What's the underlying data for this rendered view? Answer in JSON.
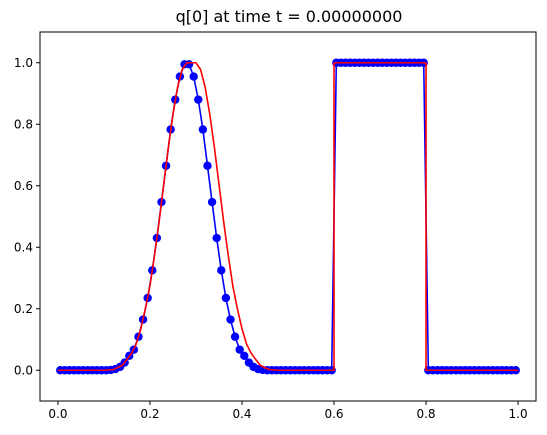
{
  "chart_data": {
    "type": "line",
    "title": "q[0] at time t =     0.00000000",
    "xlabel": "",
    "ylabel": "",
    "xlim": [
      -0.039,
      1.039
    ],
    "ylim": [
      -0.1,
      1.1
    ],
    "grid": false,
    "x_ticks": [
      0.0,
      0.2,
      0.4,
      0.6,
      0.8,
      1.0
    ],
    "x_tick_labels": [
      "0.0",
      "0.2",
      "0.4",
      "0.6",
      "0.8",
      "1.0"
    ],
    "y_ticks": [
      0.0,
      0.2,
      0.4,
      0.6,
      0.8,
      1.0
    ],
    "y_tick_labels": [
      "0.0",
      "0.2",
      "0.4",
      "0.6",
      "0.8",
      "1.0"
    ],
    "x": [
      0.005,
      0.015,
      0.025,
      0.035,
      0.045,
      0.055,
      0.065,
      0.075,
      0.085,
      0.095,
      0.105,
      0.115,
      0.125,
      0.135,
      0.145,
      0.155,
      0.165,
      0.175,
      0.185,
      0.195,
      0.205,
      0.215,
      0.225,
      0.235,
      0.245,
      0.255,
      0.265,
      0.275,
      0.285,
      0.295,
      0.305,
      0.315,
      0.325,
      0.335,
      0.345,
      0.355,
      0.365,
      0.375,
      0.385,
      0.395,
      0.405,
      0.415,
      0.425,
      0.435,
      0.445,
      0.455,
      0.465,
      0.475,
      0.485,
      0.495,
      0.505,
      0.515,
      0.525,
      0.535,
      0.545,
      0.555,
      0.565,
      0.575,
      0.585,
      0.595,
      0.605,
      0.615,
      0.625,
      0.635,
      0.645,
      0.655,
      0.665,
      0.675,
      0.685,
      0.695,
      0.705,
      0.715,
      0.725,
      0.735,
      0.745,
      0.755,
      0.765,
      0.775,
      0.785,
      0.795,
      0.805,
      0.815,
      0.825,
      0.835,
      0.845,
      0.855,
      0.865,
      0.875,
      0.885,
      0.895,
      0.905,
      0.915,
      0.925,
      0.935,
      0.945,
      0.955,
      0.965,
      0.975,
      0.985,
      0.995
    ],
    "series": [
      {
        "color": "#0000ff",
        "marker": "circle",
        "values": [
          0.0,
          0.0,
          0.0,
          0.0,
          0.0,
          0.0,
          0.0,
          0.0,
          0.0,
          0.0,
          0.0,
          0.001,
          0.004,
          0.011,
          0.025,
          0.047,
          0.067,
          0.109,
          0.165,
          0.235,
          0.325,
          0.43,
          0.547,
          0.665,
          0.783,
          0.88,
          0.955,
          0.995,
          0.995,
          0.955,
          0.88,
          0.783,
          0.665,
          0.547,
          0.43,
          0.325,
          0.235,
          0.165,
          0.109,
          0.067,
          0.047,
          0.025,
          0.011,
          0.004,
          0.001,
          0.0,
          0.0,
          0.0,
          0.0,
          0.0,
          0.0,
          0.0,
          0.0,
          0.0,
          0.0,
          0.0,
          0.0,
          0.0,
          0.0,
          0.0,
          1.0,
          1.0,
          1.0,
          1.0,
          1.0,
          1.0,
          1.0,
          1.0,
          1.0,
          1.0,
          1.0,
          1.0,
          1.0,
          1.0,
          1.0,
          1.0,
          1.0,
          1.0,
          1.0,
          1.0,
          0.0,
          0.0,
          0.0,
          0.0,
          0.0,
          0.0,
          0.0,
          0.0,
          0.0,
          0.0,
          0.0,
          0.0,
          0.0,
          0.0,
          0.0,
          0.0,
          0.0,
          0.0,
          0.0,
          0.0
        ]
      },
      {
        "color": "#ff0000",
        "marker": "none",
        "x": [
          0.0,
          0.05,
          0.1,
          0.12,
          0.14,
          0.15,
          0.16,
          0.17,
          0.18,
          0.19,
          0.2,
          0.21,
          0.22,
          0.23,
          0.24,
          0.25,
          0.26,
          0.27,
          0.28,
          0.29,
          0.3,
          0.31,
          0.32,
          0.33,
          0.34,
          0.35,
          0.36,
          0.37,
          0.38,
          0.39,
          0.4,
          0.41,
          0.42,
          0.43,
          0.44,
          0.45,
          0.46,
          0.48,
          0.5,
          0.55,
          0.6,
          0.6,
          0.8,
          0.8,
          0.9,
          1.0
        ],
        "values": [
          0.0,
          0.0,
          0.0,
          0.002,
          0.016,
          0.035,
          0.055,
          0.085,
          0.135,
          0.2,
          0.275,
          0.375,
          0.485,
          0.605,
          0.725,
          0.832,
          0.92,
          0.978,
          1.0,
          1.0,
          1.0,
          0.978,
          0.92,
          0.832,
          0.725,
          0.605,
          0.485,
          0.375,
          0.275,
          0.2,
          0.135,
          0.085,
          0.055,
          0.035,
          0.016,
          0.008,
          0.002,
          0.0,
          0.0,
          0.0,
          0.0,
          1.0,
          1.0,
          0.0,
          0.0,
          0.0
        ]
      }
    ]
  }
}
